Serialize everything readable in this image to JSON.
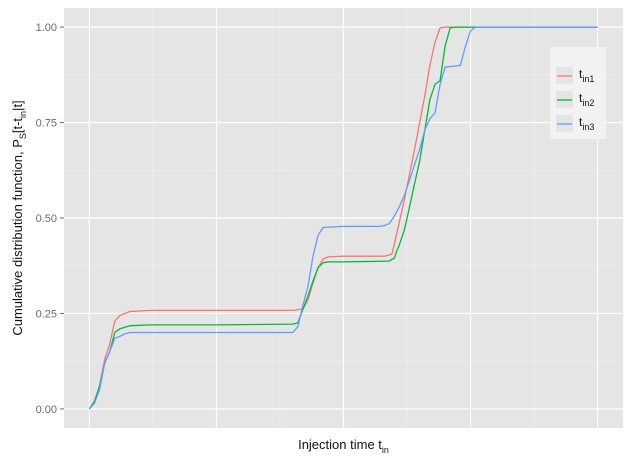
{
  "chart_data": {
    "type": "line",
    "title": "",
    "xlabel": {
      "main": "Injection time t",
      "sub": "in"
    },
    "ylabel": {
      "prefix": "Cumulative distribution function, P",
      "sub1": "S",
      "mid": "[t-t",
      "sub2": "in",
      "suffix": "|t]"
    },
    "xlim": [
      -0.05,
      1.05
    ],
    "ylim": [
      -0.05,
      1.05
    ],
    "x_tick_labels_shown": false,
    "y_ticks": [
      0.0,
      0.25,
      0.5,
      0.75,
      1.0
    ],
    "y_tick_labels": [
      "0.00",
      "0.25",
      "0.50",
      "0.75",
      "1.00"
    ],
    "grid": true,
    "background": "#e5e5e5",
    "legend_position": "top-right",
    "series": [
      {
        "label_main": "t",
        "label_sub": "in1",
        "color": "#f8766d",
        "points": [
          [
            0.0,
            0.0
          ],
          [
            0.01,
            0.02
          ],
          [
            0.02,
            0.06
          ],
          [
            0.03,
            0.13
          ],
          [
            0.04,
            0.17
          ],
          [
            0.05,
            0.23
          ],
          [
            0.06,
            0.245
          ],
          [
            0.07,
            0.25
          ],
          [
            0.08,
            0.255
          ],
          [
            0.12,
            0.258
          ],
          [
            0.25,
            0.258
          ],
          [
            0.4,
            0.258
          ],
          [
            0.42,
            0.262
          ],
          [
            0.43,
            0.285
          ],
          [
            0.44,
            0.33
          ],
          [
            0.45,
            0.37
          ],
          [
            0.46,
            0.393
          ],
          [
            0.47,
            0.398
          ],
          [
            0.5,
            0.4
          ],
          [
            0.58,
            0.4
          ],
          [
            0.595,
            0.405
          ],
          [
            0.6,
            0.43
          ],
          [
            0.62,
            0.55
          ],
          [
            0.64,
            0.68
          ],
          [
            0.66,
            0.82
          ],
          [
            0.67,
            0.9
          ],
          [
            0.68,
            0.96
          ],
          [
            0.69,
            0.998
          ],
          [
            0.7,
            1.0
          ],
          [
            1.0,
            1.0
          ]
        ]
      },
      {
        "label_main": "t",
        "label_sub": "in2",
        "color": "#00ba38",
        "points": [
          [
            0.0,
            0.0
          ],
          [
            0.01,
            0.02
          ],
          [
            0.02,
            0.06
          ],
          [
            0.03,
            0.12
          ],
          [
            0.04,
            0.15
          ],
          [
            0.05,
            0.2
          ],
          [
            0.06,
            0.21
          ],
          [
            0.08,
            0.218
          ],
          [
            0.12,
            0.22
          ],
          [
            0.25,
            0.22
          ],
          [
            0.4,
            0.222
          ],
          [
            0.41,
            0.225
          ],
          [
            0.42,
            0.26
          ],
          [
            0.43,
            0.295
          ],
          [
            0.44,
            0.335
          ],
          [
            0.45,
            0.37
          ],
          [
            0.46,
            0.383
          ],
          [
            0.47,
            0.385
          ],
          [
            0.5,
            0.385
          ],
          [
            0.59,
            0.387
          ],
          [
            0.6,
            0.395
          ],
          [
            0.605,
            0.415
          ],
          [
            0.61,
            0.43
          ],
          [
            0.62,
            0.47
          ],
          [
            0.63,
            0.53
          ],
          [
            0.64,
            0.59
          ],
          [
            0.65,
            0.65
          ],
          [
            0.66,
            0.73
          ],
          [
            0.67,
            0.81
          ],
          [
            0.68,
            0.85
          ],
          [
            0.69,
            0.86
          ],
          [
            0.7,
            0.95
          ],
          [
            0.71,
            0.998
          ],
          [
            0.72,
            1.0
          ],
          [
            1.0,
            1.0
          ]
        ]
      },
      {
        "label_main": "t",
        "label_sub": "in3",
        "color": "#619cff",
        "points": [
          [
            0.0,
            0.0
          ],
          [
            0.01,
            0.015
          ],
          [
            0.02,
            0.05
          ],
          [
            0.03,
            0.12
          ],
          [
            0.04,
            0.15
          ],
          [
            0.05,
            0.185
          ],
          [
            0.06,
            0.19
          ],
          [
            0.07,
            0.197
          ],
          [
            0.08,
            0.2
          ],
          [
            0.25,
            0.2
          ],
          [
            0.4,
            0.2
          ],
          [
            0.41,
            0.215
          ],
          [
            0.42,
            0.27
          ],
          [
            0.43,
            0.32
          ],
          [
            0.44,
            0.4
          ],
          [
            0.45,
            0.455
          ],
          [
            0.46,
            0.475
          ],
          [
            0.5,
            0.478
          ],
          [
            0.57,
            0.478
          ],
          [
            0.58,
            0.48
          ],
          [
            0.59,
            0.485
          ],
          [
            0.6,
            0.505
          ],
          [
            0.61,
            0.53
          ],
          [
            0.62,
            0.56
          ],
          [
            0.63,
            0.6
          ],
          [
            0.64,
            0.64
          ],
          [
            0.65,
            0.68
          ],
          [
            0.66,
            0.73
          ],
          [
            0.67,
            0.76
          ],
          [
            0.68,
            0.775
          ],
          [
            0.69,
            0.85
          ],
          [
            0.7,
            0.895
          ],
          [
            0.72,
            0.898
          ],
          [
            0.73,
            0.9
          ],
          [
            0.74,
            0.95
          ],
          [
            0.75,
            0.99
          ],
          [
            0.76,
            1.0
          ],
          [
            1.0,
            1.0
          ]
        ]
      }
    ]
  }
}
